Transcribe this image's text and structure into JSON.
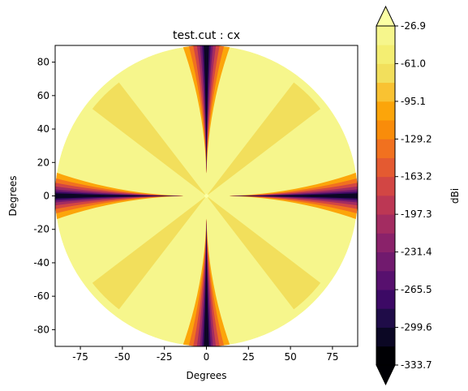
{
  "chart_data": {
    "type": "heatmap",
    "title": "test.cut : cx",
    "xlabel": "Degrees",
    "ylabel": "Degrees",
    "xlim": [
      -90,
      90
    ],
    "ylim": [
      -90,
      90
    ],
    "xticks": [
      -75,
      -50,
      -25,
      0,
      25,
      50,
      75
    ],
    "yticks": [
      -80,
      -60,
      -40,
      -20,
      0,
      20,
      40,
      60,
      80
    ],
    "domain": "circle",
    "radius_deg": 90,
    "grid": false,
    "pattern": {
      "description_of_field": "cross-polar null cuts along 0 and 90 deg, weaker lobes at 45 deg diagonals",
      "null_cut_angles_deg": [
        0,
        90,
        180,
        270
      ],
      "lobe_cut_angles_deg": [
        45,
        135,
        225,
        315
      ]
    },
    "colorbar": {
      "label": "dBi",
      "min": -333.7,
      "max": -26.9,
      "extend": "both",
      "ticks": [
        -26.9,
        -61.0,
        -95.1,
        -129.2,
        -163.2,
        -197.3,
        -231.4,
        -265.5,
        -299.6,
        -333.7
      ],
      "levels": 18,
      "colors": [
        "#000004",
        "#0b0724",
        "#1f0c48",
        "#3c0965",
        "#57106e",
        "#711a6e",
        "#8a226a",
        "#a32c61",
        "#bc3754",
        "#d24644",
        "#e45a31",
        "#f1711f",
        "#f98c0a",
        "#fca50a",
        "#f9c232",
        "#f2df5c",
        "#f4ee72",
        "#f6f68c"
      ],
      "over_color": "#fcffa4",
      "under_color": "#000004"
    }
  }
}
